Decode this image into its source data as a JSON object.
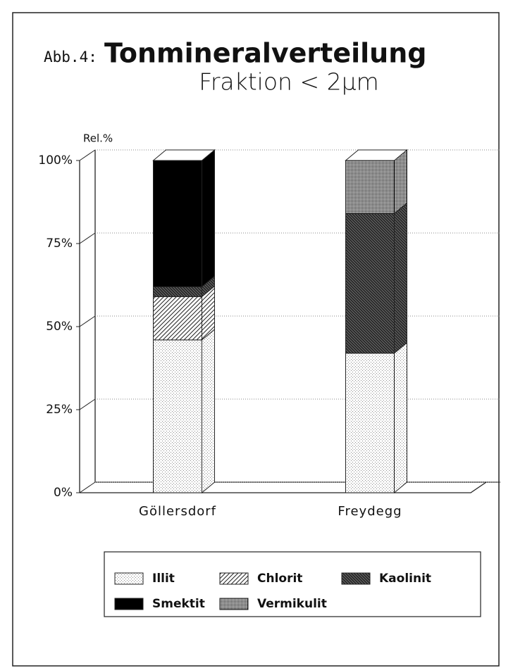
{
  "chart_data": {
    "type": "stacked-bar-3d",
    "label": "Abb.4:",
    "title": "Tonmineralverteilung",
    "subtitle": "Fraktion < 2µm",
    "y_label": "Rel.%",
    "categories": [
      "Göllersdorf",
      "Freydegg"
    ],
    "series": [
      {
        "name": "Illit",
        "color": "#888888",
        "pattern": "fine-dots",
        "values": [
          46,
          42
        ]
      },
      {
        "name": "Chlorit",
        "color": "#222222",
        "pattern": "hatch",
        "values": [
          13,
          0
        ]
      },
      {
        "name": "Kaolinit",
        "color": "#222222",
        "pattern": "crosshatch",
        "values": [
          3,
          42
        ]
      },
      {
        "name": "Smektit",
        "color": "#000000",
        "pattern": "solid",
        "values": [
          38,
          0
        ]
      },
      {
        "name": "Vermikulit",
        "color": "#333333",
        "pattern": "dots",
        "values": [
          0,
          16
        ]
      }
    ],
    "ylim": [
      0,
      100
    ],
    "yticks": [
      {
        "value": 0,
        "label": "0%"
      },
      {
        "value": 25,
        "label": "25%"
      },
      {
        "value": 50,
        "label": "50%"
      },
      {
        "value": 75,
        "label": "75%"
      },
      {
        "value": 100,
        "label": "100%"
      }
    ],
    "grid": true
  }
}
